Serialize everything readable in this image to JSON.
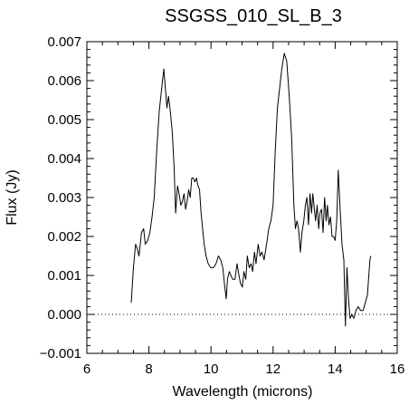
{
  "chart_data": {
    "type": "line",
    "title": "SSGSS_010_SL_B_3",
    "xlabel": "Wavelength (microns)",
    "ylabel": "Flux (Jy)",
    "xlim": [
      6,
      16
    ],
    "ylim": [
      -0.001,
      0.007
    ],
    "xticks": [
      6,
      8,
      10,
      12,
      14,
      16
    ],
    "xtick_labels": [
      "6",
      "8",
      "10",
      "12",
      "14",
      "16"
    ],
    "yticks": [
      -0.001,
      0.0,
      0.001,
      0.002,
      0.003,
      0.004,
      0.005,
      0.006,
      0.007
    ],
    "ytick_labels": [
      "−0.001",
      "0.000",
      "0.001",
      "0.002",
      "0.003",
      "0.004",
      "0.005",
      "0.006",
      "0.007"
    ],
    "zero_line": "dotted",
    "grid": false,
    "series": [
      {
        "color": "#000000",
        "x": [
          7.43,
          7.5,
          7.57,
          7.62,
          7.68,
          7.76,
          7.83,
          7.88,
          7.96,
          8.03,
          8.1,
          8.17,
          8.25,
          8.33,
          8.41,
          8.48,
          8.53,
          8.58,
          8.63,
          8.69,
          8.75,
          8.81,
          8.86,
          8.92,
          8.97,
          9.03,
          9.08,
          9.13,
          9.18,
          9.23,
          9.28,
          9.33,
          9.38,
          9.43,
          9.48,
          9.53,
          9.58,
          9.63,
          9.68,
          9.73,
          9.78,
          9.84,
          9.91,
          9.99,
          10.08,
          10.16,
          10.24,
          10.31,
          10.38,
          10.43,
          10.49,
          10.53,
          10.59,
          10.64,
          10.7,
          10.77,
          10.84,
          10.9,
          10.95,
          11.01,
          11.06,
          11.12,
          11.17,
          11.23,
          11.29,
          11.34,
          11.4,
          11.45,
          11.52,
          11.58,
          11.64,
          11.71,
          11.79,
          11.86,
          11.93,
          12.0,
          12.07,
          12.14,
          12.21,
          12.28,
          12.36,
          12.44,
          12.52,
          12.6,
          12.67,
          12.72,
          12.77,
          12.82,
          12.88,
          12.93,
          12.99,
          13.04,
          13.09,
          13.14,
          13.19,
          13.24,
          13.28,
          13.33,
          13.37,
          13.42,
          13.47,
          13.51,
          13.56,
          13.61,
          13.66,
          13.71,
          13.75,
          13.8,
          13.85,
          13.9,
          13.95,
          14.0,
          14.05,
          14.1,
          14.16,
          14.22,
          14.28,
          14.33,
          14.38,
          14.43,
          14.48,
          14.54,
          14.6,
          14.67,
          14.74,
          14.82,
          14.9,
          14.97,
          15.04,
          15.12,
          15.15
        ],
        "y": [
          0.0003,
          0.0012,
          0.0018,
          0.0017,
          0.0015,
          0.0021,
          0.0022,
          0.0018,
          0.0019,
          0.0021,
          0.0025,
          0.003,
          0.0042,
          0.0052,
          0.0058,
          0.0063,
          0.0058,
          0.0053,
          0.0056,
          0.0052,
          0.0047,
          0.0038,
          0.0026,
          0.0033,
          0.0031,
          0.0028,
          0.0029,
          0.0031,
          0.0027,
          0.0029,
          0.0032,
          0.003,
          0.0035,
          0.0035,
          0.0034,
          0.0035,
          0.0033,
          0.0032,
          0.0026,
          0.0022,
          0.0018,
          0.0015,
          0.0013,
          0.0012,
          0.0012,
          0.0013,
          0.0015,
          0.0014,
          0.0012,
          0.0008,
          0.0004,
          0.0009,
          0.0011,
          0.001,
          0.0009,
          0.0009,
          0.0013,
          0.001,
          0.0008,
          0.0007,
          0.0011,
          0.0009,
          0.0015,
          0.0012,
          0.0013,
          0.0011,
          0.0016,
          0.0013,
          0.0018,
          0.0015,
          0.0016,
          0.0014,
          0.0018,
          0.0022,
          0.0024,
          0.0028,
          0.0042,
          0.0053,
          0.0058,
          0.0063,
          0.0067,
          0.0065,
          0.0056,
          0.0045,
          0.0028,
          0.0022,
          0.0024,
          0.0022,
          0.0016,
          0.0021,
          0.0024,
          0.0028,
          0.003,
          0.0023,
          0.0031,
          0.0026,
          0.0031,
          0.0027,
          0.0024,
          0.0028,
          0.0022,
          0.0026,
          0.0027,
          0.0021,
          0.003,
          0.0024,
          0.0028,
          0.0023,
          0.0025,
          0.002,
          0.002,
          0.0019,
          0.0024,
          0.0037,
          0.0027,
          0.0018,
          0.0014,
          -0.0003,
          0.0012,
          0.0004,
          -0.0001,
          0.0,
          -0.0001,
          0.0001,
          0.0002,
          0.0001,
          0.0001,
          0.0003,
          0.0005,
          0.0014,
          0.0015
        ]
      }
    ]
  }
}
